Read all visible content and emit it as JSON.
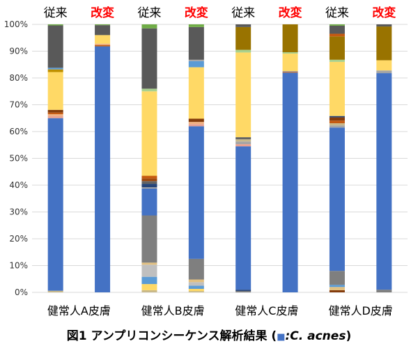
{
  "chart_data": {
    "type": "bar",
    "stacked": true,
    "caption": {
      "prefix": "図1 アンプリコンシーケンス解析結果 (",
      "swatch_color": "#4472c4",
      "species": ":C. acnes",
      "suffix": ")"
    },
    "categories": [
      "健常人A皮膚",
      "健常人B皮膚",
      "健常人C皮膚",
      "健常人D皮膚"
    ],
    "group_labels": [
      "従来",
      "改変"
    ],
    "ylim": [
      0,
      100
    ],
    "y_ticks": [
      "0%",
      "10%",
      "20%",
      "30%",
      "40%",
      "50%",
      "60%",
      "70%",
      "80%",
      "90%",
      "100%"
    ],
    "grid": true,
    "bars": [
      {
        "category": "健常人A皮膚",
        "method": "従来",
        "segments": [
          {
            "value": 0.6,
            "color": "#c9b98a"
          },
          {
            "value": 64.4,
            "color": "#4472c4"
          },
          {
            "value": 0.8,
            "color": "#e8a090"
          },
          {
            "value": 0.7,
            "color": "#f0b080"
          },
          {
            "value": 0.6,
            "color": "#c55a11"
          },
          {
            "value": 1.0,
            "color": "#843c0c"
          },
          {
            "value": 14.1,
            "color": "#ffd966"
          },
          {
            "value": 1.0,
            "color": "#bf9000"
          },
          {
            "value": 0.6,
            "color": "#5b9bd5"
          },
          {
            "value": 15.8,
            "color": "#595959"
          },
          {
            "value": 0.4,
            "color": "#70ad47"
          }
        ]
      },
      {
        "category": "健常人A皮膚",
        "method": "改変",
        "segments": [
          {
            "value": 91.8,
            "color": "#4472c4"
          },
          {
            "value": 0.5,
            "color": "#c55a11"
          },
          {
            "value": 0.5,
            "color": "#f0b080"
          },
          {
            "value": 3.2,
            "color": "#ffd966"
          },
          {
            "value": 3.7,
            "color": "#595959"
          },
          {
            "value": 0.3,
            "color": "#70ad47"
          }
        ]
      },
      {
        "category": "健常人B皮膚",
        "method": "従来",
        "segments": [
          {
            "value": 0.8,
            "color": "#c9b98a"
          },
          {
            "value": 2.3,
            "color": "#ffd966"
          },
          {
            "value": 2.7,
            "color": "#5b9bd5"
          },
          {
            "value": 4.5,
            "color": "#bfbfbf"
          },
          {
            "value": 0.8,
            "color": "#e2c080"
          },
          {
            "value": 17.6,
            "color": "#7f7f7f"
          },
          {
            "value": 10.0,
            "color": "#4472c4"
          },
          {
            "value": 0.5,
            "color": "#a5a5a5"
          },
          {
            "value": 1.3,
            "color": "#264478"
          },
          {
            "value": 1.0,
            "color": "#636363"
          },
          {
            "value": 1.0,
            "color": "#9e480e"
          },
          {
            "value": 1.0,
            "color": "#c55a11"
          },
          {
            "value": 31.5,
            "color": "#ffd966"
          },
          {
            "value": 1.0,
            "color": "#a9d18e"
          },
          {
            "value": 22.5,
            "color": "#595959"
          },
          {
            "value": 1.5,
            "color": "#70ad47"
          }
        ]
      },
      {
        "category": "健常人B皮膚",
        "method": "改変",
        "segments": [
          {
            "value": 0.5,
            "color": "#c9b98a"
          },
          {
            "value": 0.8,
            "color": "#ffd966"
          },
          {
            "value": 1.2,
            "color": "#5b9bd5"
          },
          {
            "value": 1.3,
            "color": "#bfbfbf"
          },
          {
            "value": 1.0,
            "color": "#e2c080"
          },
          {
            "value": 7.7,
            "color": "#7f7f7f"
          },
          {
            "value": 49.5,
            "color": "#4472c4"
          },
          {
            "value": 0.8,
            "color": "#e8a090"
          },
          {
            "value": 0.8,
            "color": "#f0b080"
          },
          {
            "value": 1.2,
            "color": "#843c0c"
          },
          {
            "value": 19.2,
            "color": "#ffd966"
          },
          {
            "value": 2.3,
            "color": "#5b9bd5"
          },
          {
            "value": 0.5,
            "color": "#a5a5a5"
          },
          {
            "value": 12.2,
            "color": "#595959"
          },
          {
            "value": 1.0,
            "color": "#70ad47"
          }
        ]
      },
      {
        "category": "健常人C皮膚",
        "method": "従来",
        "segments": [
          {
            "value": 0.5,
            "color": "#7f7f7f"
          },
          {
            "value": 0.5,
            "color": "#264478"
          },
          {
            "value": 53.5,
            "color": "#4472c4"
          },
          {
            "value": 0.8,
            "color": "#e8a090"
          },
          {
            "value": 1.0,
            "color": "#a5a5a5"
          },
          {
            "value": 0.8,
            "color": "#c9b98a"
          },
          {
            "value": 0.8,
            "color": "#636363"
          },
          {
            "value": 31.6,
            "color": "#ffd966"
          },
          {
            "value": 1.0,
            "color": "#a9d18e"
          },
          {
            "value": 8.5,
            "color": "#997300"
          },
          {
            "value": 1.0,
            "color": "#595959"
          }
        ]
      },
      {
        "category": "健常人C皮膚",
        "method": "改変",
        "segments": [
          {
            "value": 82.0,
            "color": "#4472c4"
          },
          {
            "value": 0.3,
            "color": "#c55a11"
          },
          {
            "value": 0.3,
            "color": "#a5a5a5"
          },
          {
            "value": 6.5,
            "color": "#ffd966"
          },
          {
            "value": 0.5,
            "color": "#a9d18e"
          },
          {
            "value": 10.4,
            "color": "#997300"
          }
        ]
      },
      {
        "category": "健常人D皮膚",
        "method": "従来",
        "segments": [
          {
            "value": 0.8,
            "color": "#843c0c"
          },
          {
            "value": 1.2,
            "color": "#e2c080"
          },
          {
            "value": 0.8,
            "color": "#5b9bd5"
          },
          {
            "value": 5.2,
            "color": "#7f7f7f"
          },
          {
            "value": 53.5,
            "color": "#4472c4"
          },
          {
            "value": 0.8,
            "color": "#a5a5a5"
          },
          {
            "value": 0.8,
            "color": "#c9b98a"
          },
          {
            "value": 1.0,
            "color": "#c55a11"
          },
          {
            "value": 1.2,
            "color": "#843c0c"
          },
          {
            "value": 0.5,
            "color": "#264478"
          },
          {
            "value": 20.2,
            "color": "#ffd966"
          },
          {
            "value": 0.8,
            "color": "#a9d18e"
          },
          {
            "value": 8.7,
            "color": "#997300"
          },
          {
            "value": 1.0,
            "color": "#c55a11"
          },
          {
            "value": 3.0,
            "color": "#595959"
          },
          {
            "value": 0.5,
            "color": "#70ad47"
          }
        ]
      },
      {
        "category": "健常人D皮膚",
        "method": "改変",
        "segments": [
          {
            "value": 1.0,
            "color": "#7f7f7f"
          },
          {
            "value": 80.8,
            "color": "#4472c4"
          },
          {
            "value": 1.0,
            "color": "#a5a5a5"
          },
          {
            "value": 3.8,
            "color": "#ffd966"
          },
          {
            "value": 12.6,
            "color": "#997300"
          },
          {
            "value": 0.8,
            "color": "#595959"
          }
        ]
      }
    ]
  }
}
